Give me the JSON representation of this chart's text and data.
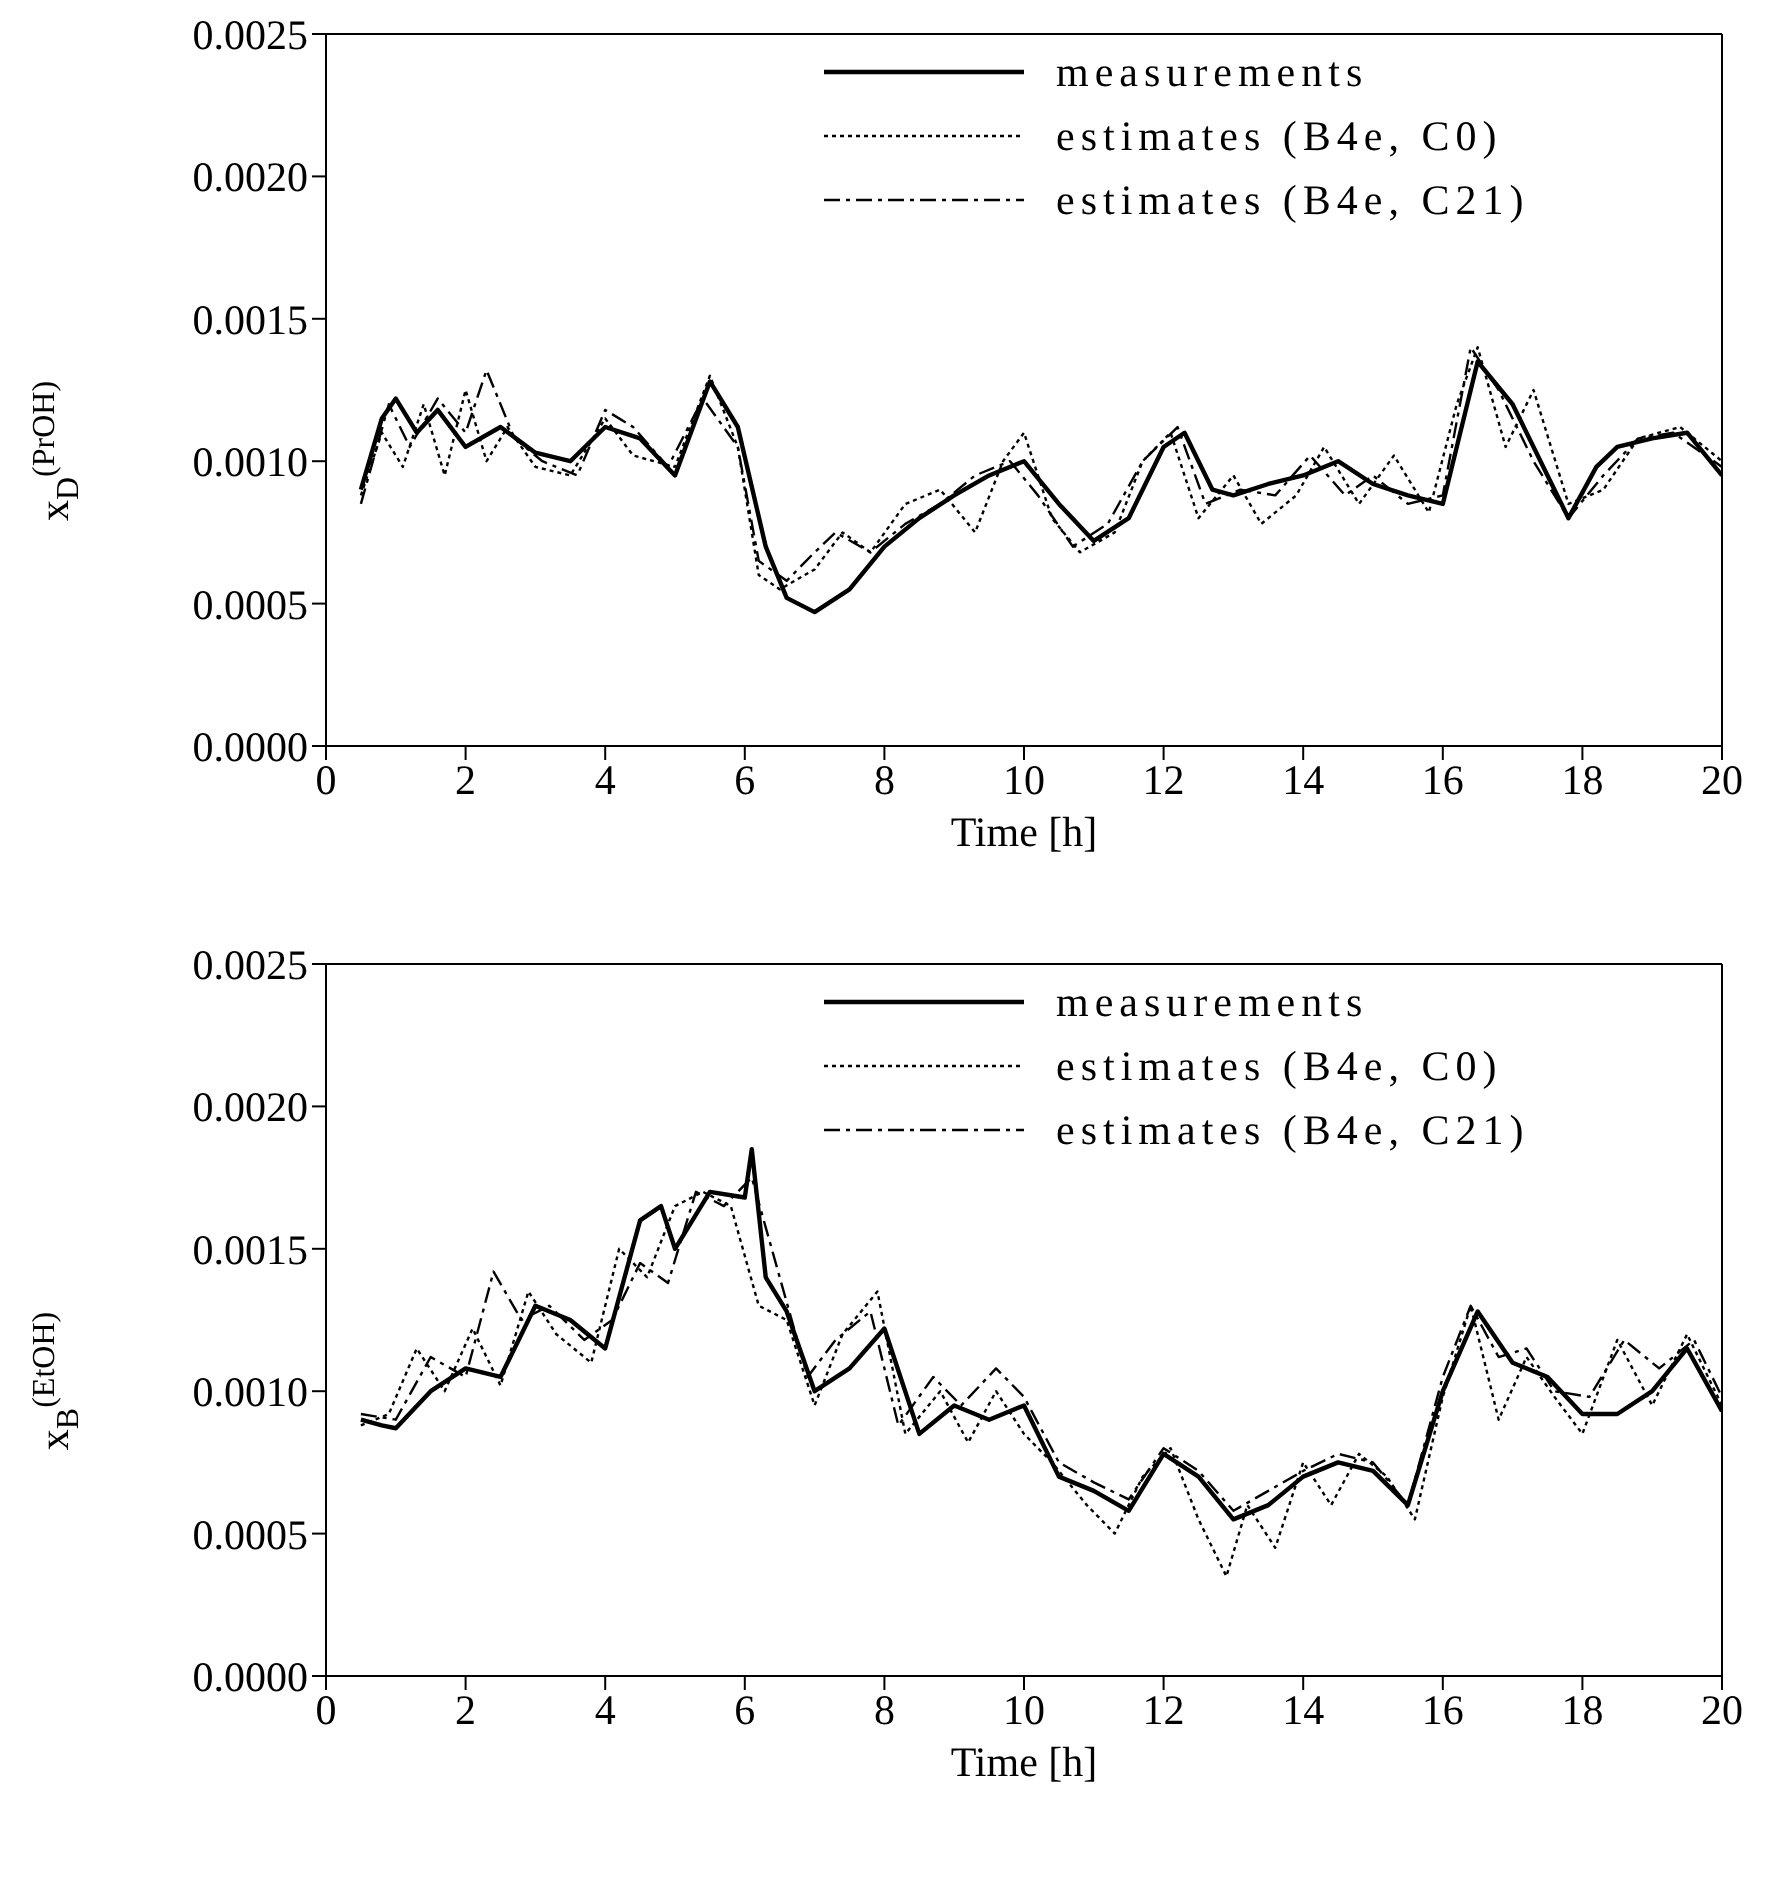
{
  "chart_data": [
    {
      "type": "line",
      "xlabel": "Time [h]",
      "ylabel": "x$_{D}$$^{(PrOH)}$",
      "xlim": [
        0,
        20
      ],
      "ylim": [
        0,
        0.0025
      ],
      "xticks": [
        0,
        2,
        4,
        6,
        8,
        10,
        12,
        14,
        16,
        18,
        20
      ],
      "yticks": [
        {
          "value": 0,
          "label": "0.0000"
        },
        {
          "value": 0.0005,
          "label": "0.0005"
        },
        {
          "value": 0.001,
          "label": "0.0010"
        },
        {
          "value": 0.0015,
          "label": "0.0015"
        },
        {
          "value": 0.002,
          "label": "0.0020"
        },
        {
          "value": 0.0025,
          "label": "0.0025"
        }
      ],
      "legend": "top right",
      "marker": "none",
      "series": [
        {
          "name": "measurements",
          "color": "#000000",
          "line_style": "solid",
          "x": [
            0.5,
            0.8,
            1.0,
            1.3,
            1.6,
            2.0,
            2.5,
            3.0,
            3.5,
            4.0,
            4.5,
            5.0,
            5.5,
            5.9,
            6.3,
            6.6,
            7.0,
            7.5,
            8.0,
            8.5,
            9.0,
            9.5,
            10.0,
            10.5,
            11.0,
            11.5,
            12.0,
            12.3,
            12.7,
            13.0,
            13.5,
            14.0,
            14.5,
            15.0,
            15.5,
            16.0,
            16.5,
            17.0,
            17.5,
            17.8,
            18.2,
            18.5,
            19.0,
            19.5,
            20.0
          ],
          "values": [
            0.0009,
            0.00115,
            0.00122,
            0.0011,
            0.00118,
            0.00105,
            0.00112,
            0.00103,
            0.001,
            0.00112,
            0.00108,
            0.00095,
            0.00128,
            0.00112,
            0.0007,
            0.00052,
            0.00047,
            0.00055,
            0.0007,
            0.0008,
            0.00088,
            0.00095,
            0.001,
            0.00085,
            0.00072,
            0.0008,
            0.00105,
            0.0011,
            0.0009,
            0.00088,
            0.00092,
            0.00095,
            0.001,
            0.00092,
            0.00088,
            0.00085,
            0.00135,
            0.0012,
            0.00095,
            0.0008,
            0.00098,
            0.00105,
            0.00108,
            0.0011,
            0.00095
          ]
        },
        {
          "name": "estimates (B4e, C0)",
          "color": "#000000",
          "line_style": "dotted",
          "x": [
            0.5,
            0.8,
            1.1,
            1.4,
            1.7,
            2.0,
            2.3,
            2.6,
            3.0,
            3.5,
            4.0,
            4.4,
            5.0,
            5.5,
            5.9,
            6.2,
            6.5,
            7.0,
            7.4,
            7.8,
            8.3,
            8.8,
            9.3,
            9.7,
            10.0,
            10.4,
            10.8,
            11.3,
            11.7,
            12.1,
            12.5,
            13.0,
            13.4,
            13.9,
            14.3,
            14.8,
            15.3,
            15.8,
            16.2,
            16.5,
            16.9,
            17.3,
            17.8,
            18.3,
            18.8,
            19.4,
            20.0
          ],
          "values": [
            0.00088,
            0.0011,
            0.00098,
            0.0012,
            0.00095,
            0.00125,
            0.001,
            0.00112,
            0.00098,
            0.00095,
            0.00115,
            0.00102,
            0.00098,
            0.0013,
            0.00105,
            0.0006,
            0.00055,
            0.00062,
            0.00075,
            0.00068,
            0.00085,
            0.0009,
            0.00075,
            0.001,
            0.0011,
            0.0008,
            0.00068,
            0.00075,
            0.001,
            0.0011,
            0.0008,
            0.00095,
            0.00078,
            0.00088,
            0.00105,
            0.00085,
            0.00102,
            0.00082,
            0.0012,
            0.0014,
            0.00105,
            0.00125,
            0.00085,
            0.0009,
            0.00108,
            0.00112,
            0.001
          ]
        },
        {
          "name": "estimates (B4e, C21)",
          "color": "#000000",
          "line_style": "dashed",
          "x": [
            0.5,
            0.9,
            1.2,
            1.6,
            2.0,
            2.3,
            2.7,
            3.1,
            3.6,
            4.0,
            4.4,
            4.9,
            5.4,
            5.9,
            6.2,
            6.6,
            7.0,
            7.3,
            7.8,
            8.3,
            8.8,
            9.3,
            9.8,
            10.2,
            10.7,
            11.2,
            11.7,
            12.2,
            12.6,
            13.1,
            13.6,
            14.1,
            14.6,
            15.0,
            15.5,
            16.0,
            16.4,
            16.8,
            17.3,
            17.8,
            18.3,
            18.8,
            19.3,
            20.0
          ],
          "values": [
            0.00085,
            0.0012,
            0.00105,
            0.00122,
            0.0011,
            0.00132,
            0.00108,
            0.001,
            0.00095,
            0.00118,
            0.00112,
            0.00098,
            0.00122,
            0.00105,
            0.00065,
            0.00058,
            0.00068,
            0.00075,
            0.00068,
            0.00078,
            0.00085,
            0.00095,
            0.001,
            0.00088,
            0.0007,
            0.00078,
            0.001,
            0.00112,
            0.00085,
            0.0009,
            0.00088,
            0.00102,
            0.00088,
            0.00095,
            0.00085,
            0.00088,
            0.0014,
            0.00125,
            0.001,
            0.0008,
            0.00095,
            0.00108,
            0.0011,
            0.00098
          ]
        }
      ]
    },
    {
      "type": "line",
      "xlabel": "Time [h]",
      "ylabel": "x$_{B}$$^{(EtOH)}$",
      "xlim": [
        0,
        20
      ],
      "ylim": [
        0,
        0.0025
      ],
      "xticks": [
        0,
        2,
        4,
        6,
        8,
        10,
        12,
        14,
        16,
        18,
        20
      ],
      "yticks": [
        {
          "value": 0,
          "label": "0.0000"
        },
        {
          "value": 0.0005,
          "label": "0.0005"
        },
        {
          "value": 0.001,
          "label": "0.0010"
        },
        {
          "value": 0.0015,
          "label": "0.0015"
        },
        {
          "value": 0.002,
          "label": "0.0020"
        },
        {
          "value": 0.0025,
          "label": "0.0025"
        }
      ],
      "legend": "top right",
      "marker": "none",
      "series": [
        {
          "name": "measurements",
          "color": "#000000",
          "line_style": "solid",
          "x": [
            0.5,
            0.8,
            1.0,
            1.5,
            2.0,
            2.5,
            3.0,
            3.5,
            4.0,
            4.5,
            4.8,
            5.0,
            5.5,
            6.0,
            6.1,
            6.3,
            6.6,
            7.0,
            7.5,
            8.0,
            8.5,
            9.0,
            9.5,
            10.0,
            10.5,
            11.0,
            11.5,
            12.0,
            12.5,
            13.0,
            13.5,
            14.0,
            14.5,
            15.0,
            15.5,
            16.0,
            16.5,
            17.0,
            17.5,
            18.0,
            18.5,
            19.0,
            19.5,
            20.0
          ],
          "values": [
            0.0009,
            0.00088,
            0.00087,
            0.001,
            0.00108,
            0.00105,
            0.0013,
            0.00125,
            0.00115,
            0.0016,
            0.00165,
            0.0015,
            0.0017,
            0.00168,
            0.00185,
            0.0014,
            0.00128,
            0.001,
            0.00108,
            0.00122,
            0.00085,
            0.00095,
            0.0009,
            0.00095,
            0.0007,
            0.00065,
            0.00058,
            0.00078,
            0.0007,
            0.00055,
            0.0006,
            0.0007,
            0.00075,
            0.00072,
            0.0006,
            0.001,
            0.00128,
            0.0011,
            0.00105,
            0.00092,
            0.00092,
            0.001,
            0.00115,
            0.00093
          ]
        },
        {
          "name": "estimates (B4e, C0)",
          "color": "#000000",
          "line_style": "dotted",
          "x": [
            0.5,
            0.9,
            1.3,
            1.7,
            2.1,
            2.5,
            2.9,
            3.3,
            3.8,
            4.2,
            4.6,
            5.0,
            5.4,
            5.8,
            6.2,
            6.6,
            7.0,
            7.4,
            7.9,
            8.3,
            8.8,
            9.2,
            9.6,
            10.0,
            10.4,
            10.9,
            11.3,
            11.7,
            12.1,
            12.5,
            12.9,
            13.2,
            13.6,
            14.0,
            14.4,
            14.8,
            15.2,
            15.6,
            16.0,
            16.4,
            16.8,
            17.2,
            17.6,
            18.0,
            18.5,
            19.0,
            19.5,
            20.0
          ],
          "values": [
            0.00088,
            0.00092,
            0.00115,
            0.001,
            0.00122,
            0.00102,
            0.00135,
            0.0012,
            0.0011,
            0.0015,
            0.0014,
            0.00165,
            0.0017,
            0.00165,
            0.0013,
            0.00125,
            0.00095,
            0.0012,
            0.00135,
            0.00085,
            0.001,
            0.00082,
            0.001,
            0.00085,
            0.00075,
            0.0006,
            0.0005,
            0.0007,
            0.0008,
            0.00055,
            0.00035,
            0.0006,
            0.00045,
            0.00075,
            0.0006,
            0.00078,
            0.0007,
            0.00055,
            0.00098,
            0.0013,
            0.0009,
            0.00112,
            0.00098,
            0.00085,
            0.00118,
            0.00095,
            0.0012,
            0.00095
          ]
        },
        {
          "name": "estimates (B4e, C21)",
          "color": "#000000",
          "line_style": "dashed",
          "x": [
            0.5,
            1.0,
            1.5,
            2.0,
            2.4,
            2.8,
            3.2,
            3.7,
            4.1,
            4.5,
            4.9,
            5.3,
            5.7,
            6.1,
            6.5,
            6.9,
            7.3,
            7.8,
            8.2,
            8.7,
            9.1,
            9.6,
            10.0,
            10.5,
            11.0,
            11.5,
            12.0,
            12.5,
            13.0,
            13.5,
            14.0,
            14.5,
            15.0,
            15.5,
            16.0,
            16.4,
            16.8,
            17.2,
            17.6,
            18.1,
            18.6,
            19.1,
            19.6,
            20.0
          ],
          "values": [
            0.00092,
            0.0009,
            0.00112,
            0.00105,
            0.00142,
            0.00125,
            0.0013,
            0.00118,
            0.00125,
            0.00145,
            0.00138,
            0.0017,
            0.00165,
            0.00175,
            0.0014,
            0.00105,
            0.00118,
            0.00128,
            0.00088,
            0.00105,
            0.00095,
            0.00108,
            0.00098,
            0.00075,
            0.00068,
            0.00062,
            0.0008,
            0.00072,
            0.00058,
            0.00065,
            0.00072,
            0.00078,
            0.00075,
            0.0006,
            0.00105,
            0.0013,
            0.00112,
            0.00115,
            0.001,
            0.00098,
            0.00118,
            0.00108,
            0.00118,
            0.00098
          ]
        }
      ]
    }
  ]
}
